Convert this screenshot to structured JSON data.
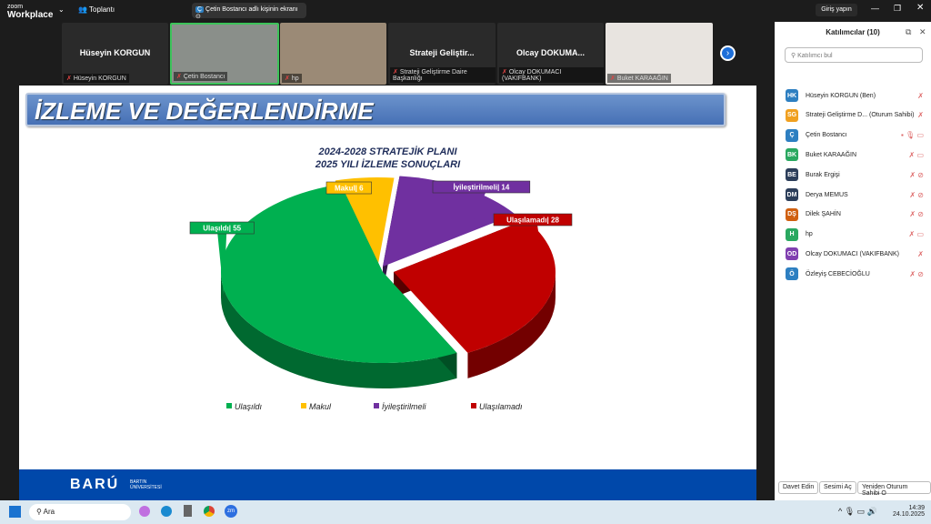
{
  "app": {
    "logo_small": "zoom",
    "logo_big": "Workplace",
    "meeting_label": "Toplantı",
    "share_banner": "Çetin Bostancı adlı kişinin ekranı",
    "sign_in": "Giriş yapın"
  },
  "tiles": [
    {
      "name": "Hüseyin KORGUN",
      "label": "Hüseyin KORGUN",
      "video": false
    },
    {
      "name": "",
      "label": "Çetin Bostancı",
      "video": true,
      "active": true
    },
    {
      "name": "",
      "label": "hp",
      "video": true
    },
    {
      "name": "Strateji Geliştir...",
      "label": "Strateji Geliştirme Daire Başkanlığı",
      "video": false
    },
    {
      "name": "Olcay DOKUMA...",
      "label": "Olcay DOKUMACI (VAKIFBANK)",
      "video": false
    },
    {
      "name": "",
      "label": "Buket KARAAĞIN",
      "video": true
    }
  ],
  "slide": {
    "title": "İZLEME VE DEĞERLENDİRME",
    "footer_logo": "BARÚ",
    "footer_sub1": "BARTIN",
    "footer_sub2": "ÜNİVERSİTESİ"
  },
  "chart_data": {
    "type": "pie",
    "title": "2024-2028 STRATEJİK PLANI",
    "subtitle": "2025 YILI İZLEME SONUÇLARI",
    "three_d": true,
    "legend_placement": "bottom",
    "categories": [
      "Ulaşıldı",
      "Makul",
      "İyileştirilmeli",
      "Ulaşılamadı"
    ],
    "values": [
      55,
      6,
      14,
      28
    ],
    "data_labels": [
      "Ulaşıldı| 55",
      "Makul| 6",
      "İyileştirilmeli| 14",
      "Ulaşılamadı| 28"
    ],
    "colors": [
      "#00b050",
      "#ffc000",
      "#7030a0",
      "#c00000"
    ]
  },
  "panel": {
    "title": "Katılımcılar (10)",
    "search_placeholder": "Katılımcı bul",
    "participants": [
      {
        "initials": "HK",
        "name": "Hüseyin KORGUN (Ben)",
        "color": "#2d7fc1"
      },
      {
        "initials": "SG",
        "name": "Strateji Geliştirme D...  (Oturum Sahibi)",
        "color": "#f0a020"
      },
      {
        "initials": "Ç",
        "name": "Çetin Bostancı",
        "color": "#2d7fc1"
      },
      {
        "initials": "BK",
        "name": "Buket KARAAĞIN",
        "color": "#2aa860"
      },
      {
        "initials": "BE",
        "name": "Burak Ergişi",
        "color": "#2c3e5a"
      },
      {
        "initials": "DM",
        "name": "Derya MEMUS",
        "color": "#2c3e5a"
      },
      {
        "initials": "DŞ",
        "name": "Dilek ŞAHİN",
        "color": "#d06010"
      },
      {
        "initials": "H",
        "name": "hp",
        "color": "#2aa860"
      },
      {
        "initials": "OD",
        "name": "Olcay DOKUMACI (VAKIFBANK)",
        "color": "#8040b0"
      },
      {
        "initials": "Ö",
        "name": "Özleyiş CEBECİOĞLU",
        "color": "#2d7fc1"
      }
    ],
    "buttons": [
      "Davet Edin",
      "Sesimi Aç",
      "Yeniden Oturum Sahibi O"
    ]
  },
  "taskbar": {
    "search": "Ara",
    "time": "14:39",
    "date": "24.10.2025"
  }
}
